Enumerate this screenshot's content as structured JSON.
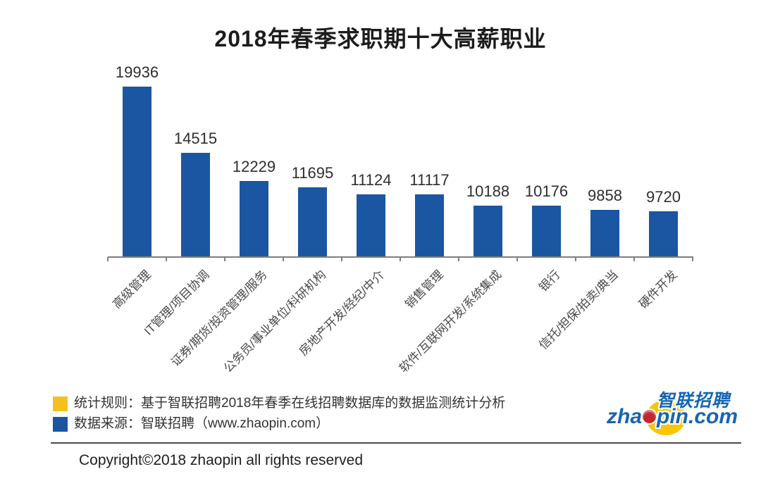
{
  "title": "2018年春季求职期十大高薪职业",
  "chart_data": {
    "type": "bar",
    "title": "2018年春季求职期十大高薪职业",
    "categories": [
      "高级管理",
      "IT管理/项目协调",
      "证券/期货/投资管理/服务",
      "公务员/事业单位/科研机构",
      "房地产开发/经纪/中介",
      "销售管理",
      "软件/互联网开发/系统集成",
      "银行",
      "信托/担保/拍卖/典当",
      "硬件开发"
    ],
    "values": [
      19936,
      14515,
      12229,
      11695,
      11124,
      11117,
      10188,
      10176,
      9858,
      9720
    ],
    "xlabel": "",
    "ylabel": "",
    "ylim": [
      6000,
      20500
    ],
    "bar_color": "#1b56a2",
    "axis_color": "#7f7f7f",
    "value_labels_shown": true,
    "grid": false,
    "legend_position": "none"
  },
  "footer": {
    "legend": [
      {
        "color": "#f2c11d",
        "label": "统计规则：基于智联招聘2018年春季在线招聘数据库的数据监测统计分析"
      },
      {
        "color": "#1b56a2",
        "label": "数据来源：智联招聘（www.zhaopin.com）"
      }
    ],
    "copyright": "Copyright©2018 zhaopin all rights reserved"
  },
  "logo": {
    "cn_text": "智联招聘",
    "domain_prefix": "zha",
    "domain_suffix": "pin.com",
    "blue": "#1565b4",
    "yellow": "#f9c507",
    "dot_red": "#c2272d"
  }
}
